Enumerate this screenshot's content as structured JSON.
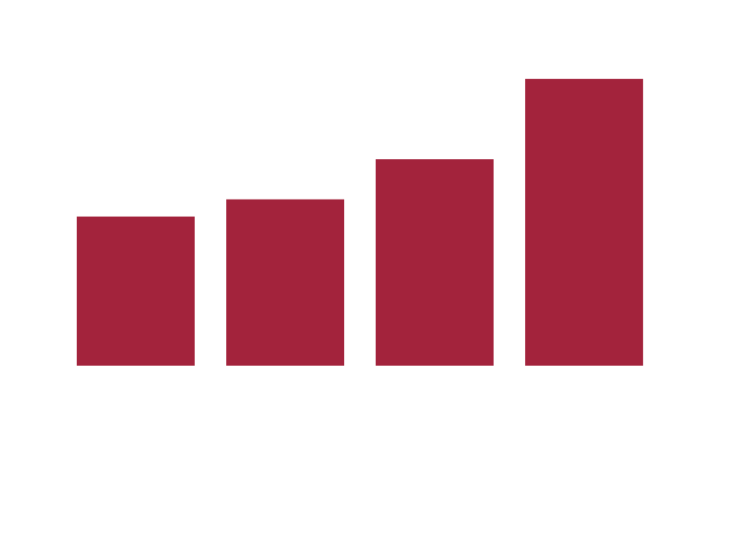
{
  "chart_data": {
    "type": "bar",
    "categories": [
      "",
      "",
      "",
      ""
    ],
    "values": [
      52,
      58,
      72,
      100
    ],
    "ylim": [
      0,
      100
    ],
    "title": "",
    "xlabel": "",
    "ylabel": "",
    "grid": false,
    "axes_visible": false,
    "legend": "none",
    "bar_color": "#a3233c"
  }
}
